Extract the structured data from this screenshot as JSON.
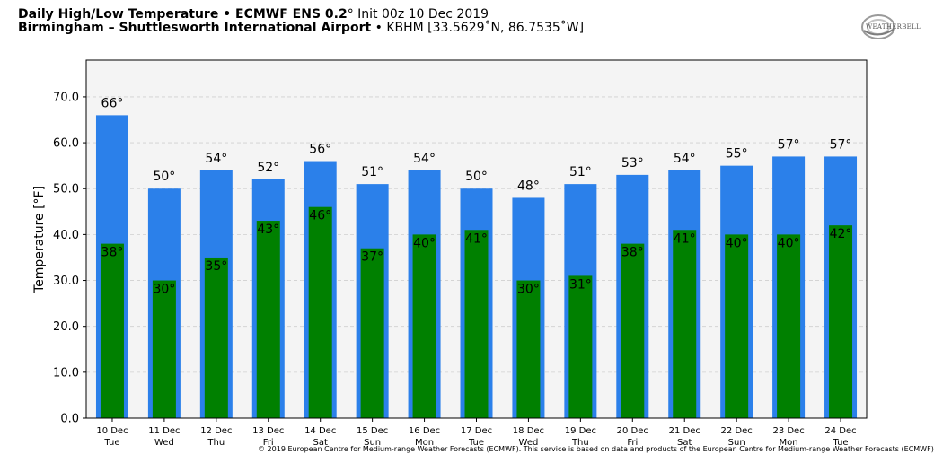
{
  "header": {
    "title_bold": "Daily High/Low Temperature • ECMWF ENS 0.2",
    "title_degree": "°",
    "title_init": " Init 00z 10 Dec 2019",
    "location_bold": "Birmingham – Shuttlesworth International Airport",
    "location_rest": " • KBHM [33.5629˚N, 86.7535˚W]"
  },
  "logo": {
    "text": "WEATHERBELL"
  },
  "colors": {
    "high_bar": "#2b80ea",
    "low_bar": "#008000",
    "plot_bg": "#f4f4f4",
    "grid": "#cfcfcf"
  },
  "chart_data": {
    "type": "bar",
    "ylabel": "Temperature [°F]",
    "ylim": [
      0,
      78
    ],
    "yticks": [
      "0.0",
      "10.0",
      "20.0",
      "30.0",
      "40.0",
      "50.0",
      "60.0",
      "70.0"
    ],
    "ytick_values": [
      0,
      10,
      20,
      30,
      40,
      50,
      60,
      70
    ],
    "grid": true,
    "categories": [
      {
        "date": "10 Dec",
        "day": "Tue"
      },
      {
        "date": "11 Dec",
        "day": "Wed"
      },
      {
        "date": "12 Dec",
        "day": "Thu"
      },
      {
        "date": "13 Dec",
        "day": "Fri"
      },
      {
        "date": "14 Dec",
        "day": "Sat"
      },
      {
        "date": "15 Dec",
        "day": "Sun"
      },
      {
        "date": "16 Dec",
        "day": "Mon"
      },
      {
        "date": "17 Dec",
        "day": "Tue"
      },
      {
        "date": "18 Dec",
        "day": "Wed"
      },
      {
        "date": "19 Dec",
        "day": "Thu"
      },
      {
        "date": "20 Dec",
        "day": "Fri"
      },
      {
        "date": "21 Dec",
        "day": "Sat"
      },
      {
        "date": "22 Dec",
        "day": "Sun"
      },
      {
        "date": "23 Dec",
        "day": "Mon"
      },
      {
        "date": "24 Dec",
        "day": "Tue"
      }
    ],
    "series": [
      {
        "values": [
          66,
          50,
          54,
          52,
          56,
          51,
          54,
          50,
          48,
          51,
          53,
          54,
          55,
          57,
          57
        ],
        "labels": [
          "66°",
          "50°",
          "54°",
          "52°",
          "56°",
          "51°",
          "54°",
          "50°",
          "48°",
          "51°",
          "53°",
          "54°",
          "55°",
          "57°",
          "57°"
        ]
      },
      {
        "values": [
          38,
          30,
          35,
          43,
          46,
          37,
          40,
          41,
          30,
          31,
          38,
          41,
          40,
          40,
          42
        ],
        "labels": [
          "38°",
          "30°",
          "35°",
          "43°",
          "46°",
          "37°",
          "40°",
          "41°",
          "30°",
          "31°",
          "38°",
          "41°",
          "40°",
          "40°",
          "42°"
        ]
      }
    ]
  },
  "footer": {
    "copyright": "© 2019 European Centre for Medium-range Weather Forecasts (ECMWF). This service is based on data and products of the European Centre for Medium-range Weather Forecasts (ECMWF)"
  }
}
